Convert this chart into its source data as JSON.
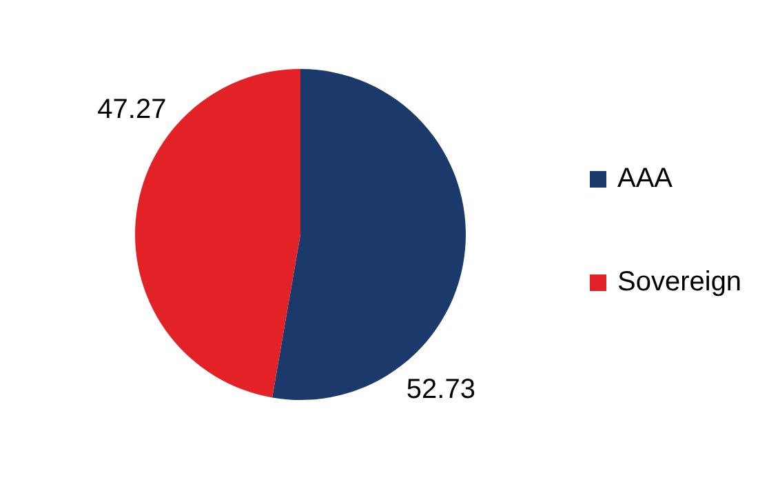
{
  "chart_data": {
    "type": "pie",
    "categories": [
      "AAA",
      "Sovereign"
    ],
    "values": [
      52.73,
      47.27
    ],
    "colors": [
      "#1b3a6b",
      "#e32227"
    ],
    "data_labels": true,
    "legend": "right"
  }
}
